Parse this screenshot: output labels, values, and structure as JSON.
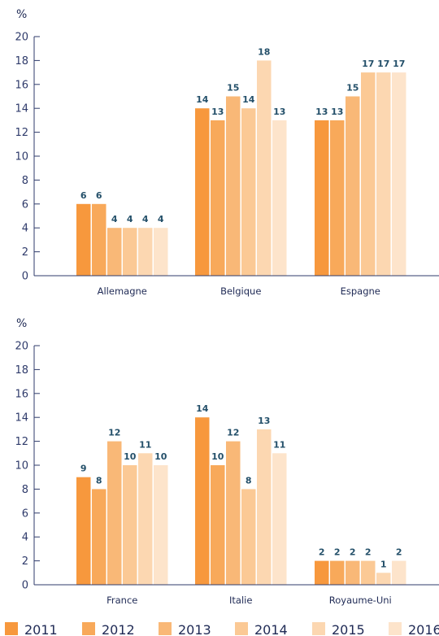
{
  "chart_data": [
    {
      "type": "bar",
      "ylabel": "%",
      "ylim": [
        0,
        20
      ],
      "yticks": [
        0,
        2,
        4,
        6,
        8,
        10,
        12,
        14,
        16,
        18,
        20
      ],
      "categories": [
        "Allemagne",
        "Belgique",
        "Espagne"
      ],
      "series": [
        {
          "name": "2011",
          "values": [
            6,
            14,
            13
          ]
        },
        {
          "name": "2012",
          "values": [
            6,
            13,
            13
          ]
        },
        {
          "name": "2013",
          "values": [
            4,
            15,
            15
          ]
        },
        {
          "name": "2014",
          "values": [
            4,
            14,
            17
          ]
        },
        {
          "name": "2015",
          "values": [
            4,
            18,
            17
          ]
        },
        {
          "name": "2016",
          "values": [
            4,
            13,
            17
          ]
        }
      ],
      "grid": false
    },
    {
      "type": "bar",
      "ylabel": "%",
      "ylim": [
        0,
        20
      ],
      "yticks": [
        0,
        2,
        4,
        6,
        8,
        10,
        12,
        14,
        16,
        18,
        20
      ],
      "categories": [
        "France",
        "Italie",
        "Royaume-Uni"
      ],
      "series": [
        {
          "name": "2011",
          "values": [
            9,
            14,
            2
          ]
        },
        {
          "name": "2012",
          "values": [
            8,
            10,
            2
          ]
        },
        {
          "name": "2013",
          "values": [
            12,
            12,
            2
          ]
        },
        {
          "name": "2014",
          "values": [
            10,
            8,
            2
          ]
        },
        {
          "name": "2015",
          "values": [
            11,
            13,
            1
          ]
        },
        {
          "name": "2016",
          "values": [
            10,
            11,
            2
          ]
        }
      ],
      "grid": false
    }
  ],
  "legend": {
    "placement": "bottom",
    "items": [
      "2011",
      "2012",
      "2013",
      "2014",
      "2015",
      "2016"
    ]
  },
  "colors": [
    "#f7983d",
    "#f8a95a",
    "#f9b877",
    "#fbc995",
    "#fcd7b1",
    "#fde4cb"
  ],
  "axis_color": "#2f3b6b"
}
